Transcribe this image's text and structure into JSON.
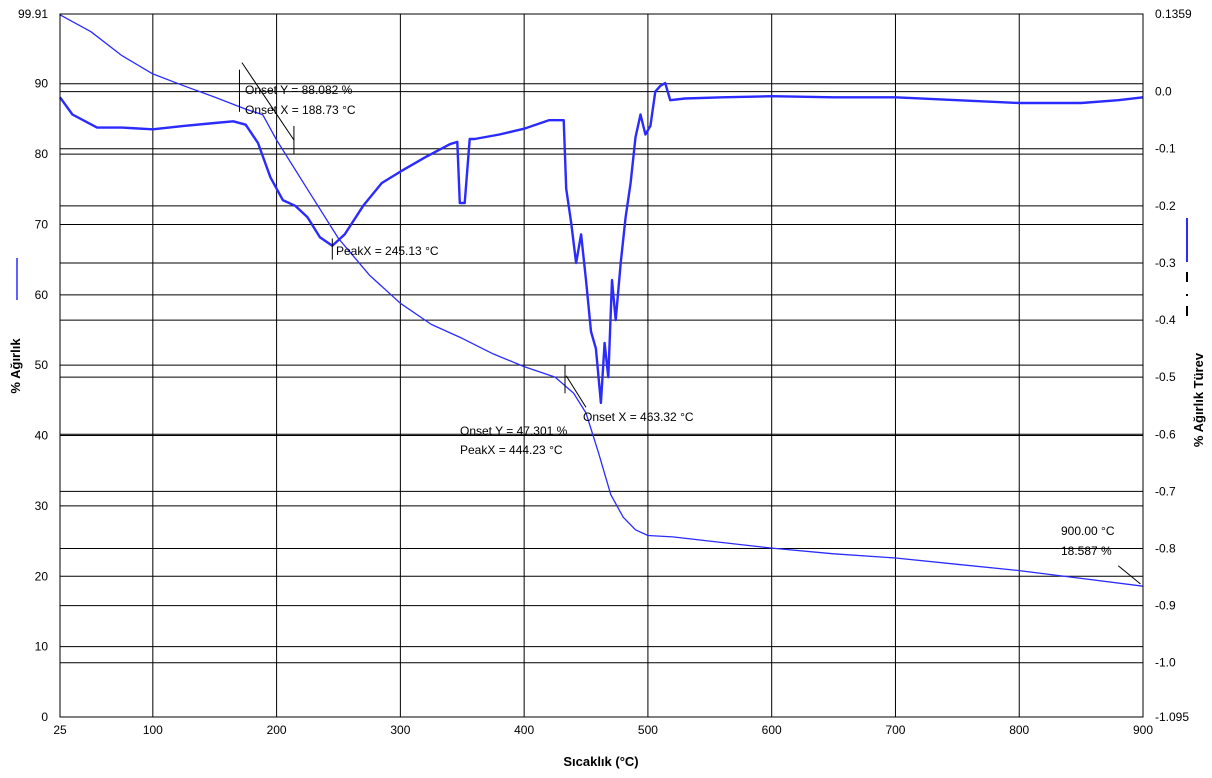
{
  "chart_data": {
    "type": "line",
    "xlabel": "Sıcaklık (°C)",
    "ylabel_left": "% Ağırlık",
    "ylabel_right": "% Ağırlık Türev",
    "x_range": [
      25,
      900
    ],
    "y_left_range": [
      0,
      99.91
    ],
    "y_right_range": [
      -1.095,
      0.1359
    ],
    "x_ticks": [
      "25",
      "100",
      "200",
      "300",
      "400",
      "500",
      "600",
      "700",
      "800",
      "900"
    ],
    "x_tick_values": [
      25,
      100,
      200,
      300,
      400,
      500,
      600,
      700,
      800,
      900
    ],
    "y_left_ticks": [
      "0",
      "10",
      "20",
      "30",
      "40",
      "50",
      "60",
      "70",
      "80",
      "90",
      "99.91"
    ],
    "y_left_tick_values": [
      0,
      10,
      20,
      30,
      40,
      50,
      60,
      70,
      80,
      90,
      99.91
    ],
    "y_right_ticks": [
      "-1.095",
      "-1.0",
      "-0.9",
      "-0.8",
      "-0.7",
      "-0.6",
      "-0.5",
      "-0.4",
      "-0.3",
      "-0.2",
      "-0.1",
      "0.0",
      "0.1359"
    ],
    "y_right_tick_values": [
      -1.095,
      -1.0,
      -0.9,
      -0.8,
      -0.7,
      -0.6,
      -0.5,
      -0.4,
      -0.3,
      -0.2,
      -0.1,
      0.0,
      0.1359
    ],
    "grid": true,
    "line_color": "#2b2bff",
    "series": [
      {
        "axis": "left",
        "x": [
          25,
          50,
          75,
          100,
          125,
          150,
          175,
          188.73,
          200,
          225,
          250,
          275,
          300,
          325,
          350,
          375,
          400,
          425,
          440,
          450,
          460,
          470,
          480,
          490,
          500,
          520,
          550,
          600,
          650,
          700,
          750,
          800,
          850,
          900
        ],
        "y": [
          99.8,
          97.4,
          94.0,
          91.4,
          89.7,
          88.1,
          86.4,
          85.6,
          82.0,
          75.0,
          68.0,
          62.8,
          58.8,
          55.8,
          53.8,
          51.6,
          49.8,
          48.3,
          46.0,
          43.2,
          37.6,
          31.6,
          28.4,
          26.6,
          25.8,
          25.6,
          25.0,
          24.0,
          23.2,
          22.6,
          21.7,
          20.8,
          19.7,
          18.587
        ]
      },
      {
        "axis": "right",
        "x": [
          25,
          35,
          55,
          75,
          100,
          125,
          150,
          165,
          175,
          185,
          195,
          205,
          215,
          225,
          235,
          245,
          255,
          270,
          285,
          300,
          320,
          340,
          346,
          348,
          352,
          356,
          360,
          380,
          400,
          420,
          432,
          434,
          438,
          442,
          446,
          450,
          454,
          458,
          462,
          465,
          468,
          471,
          474,
          478,
          482,
          486,
          490,
          494,
          498,
          502,
          506,
          510,
          514,
          518,
          530,
          560,
          600,
          650,
          700,
          750,
          800,
          850,
          880,
          900
        ],
        "y": [
          -0.01,
          -0.04,
          -0.063,
          -0.063,
          -0.066,
          -0.06,
          -0.055,
          -0.052,
          -0.058,
          -0.09,
          -0.15,
          -0.19,
          -0.2,
          -0.22,
          -0.255,
          -0.27,
          -0.25,
          -0.2,
          -0.16,
          -0.14,
          -0.115,
          -0.092,
          -0.088,
          -0.195,
          -0.195,
          -0.083,
          -0.083,
          -0.075,
          -0.065,
          -0.05,
          -0.05,
          -0.17,
          -0.23,
          -0.3,
          -0.25,
          -0.33,
          -0.42,
          -0.45,
          -0.545,
          -0.44,
          -0.5,
          -0.33,
          -0.4,
          -0.3,
          -0.22,
          -0.16,
          -0.08,
          -0.04,
          -0.075,
          -0.06,
          0.0,
          0.01,
          0.015,
          -0.015,
          -0.012,
          -0.01,
          -0.008,
          -0.01,
          -0.01,
          -0.015,
          -0.02,
          -0.02,
          -0.015,
          -0.01
        ]
      }
    ],
    "annotations": [
      {
        "id": "onset-y-1",
        "text": "Onset Y = 88.082 %"
      },
      {
        "id": "onset-x-1",
        "text": "Onset X = 188.73 °C"
      },
      {
        "id": "peak-x-1",
        "text": "PeakX = 245.13 °C"
      },
      {
        "id": "onset-x-2",
        "text": "Onset X = 463.32 °C"
      },
      {
        "id": "onset-y-2",
        "text": "Onset Y = 47.301 %"
      },
      {
        "id": "peak-x-2",
        "text": "PeakX = 444.23 °C"
      },
      {
        "id": "end-temp",
        "text": "900.00 °C"
      },
      {
        "id": "end-weight",
        "text": "18.587 %"
      }
    ]
  }
}
